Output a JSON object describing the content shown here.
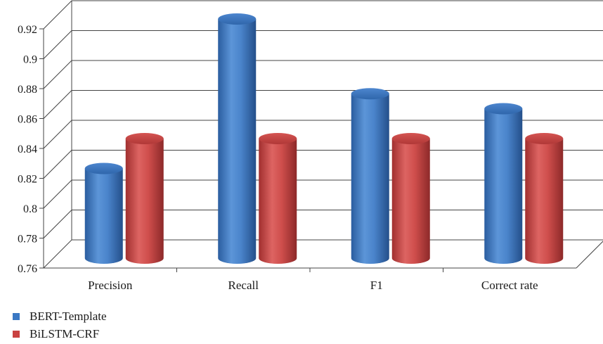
{
  "chart_data": {
    "type": "bar",
    "style": "3d-cylinder",
    "categories": [
      "Precision",
      "Recall",
      "F1",
      "Correct rate"
    ],
    "series": [
      {
        "name": "BERT-Template",
        "values": [
          0.82,
          0.92,
          0.87,
          0.86
        ],
        "color": "#3a78c4"
      },
      {
        "name": "BiLSTM-CRF",
        "values": [
          0.84,
          0.84,
          0.84,
          0.84
        ],
        "color": "#c94241"
      }
    ],
    "yticks": [
      "0.76",
      "0.78",
      "0.8",
      "0.82",
      "0.84",
      "0.86",
      "0.88",
      "0.9",
      "0.92"
    ],
    "ylim": [
      0.76,
      0.92
    ],
    "grid": true,
    "legend_position": "bottom-left"
  }
}
